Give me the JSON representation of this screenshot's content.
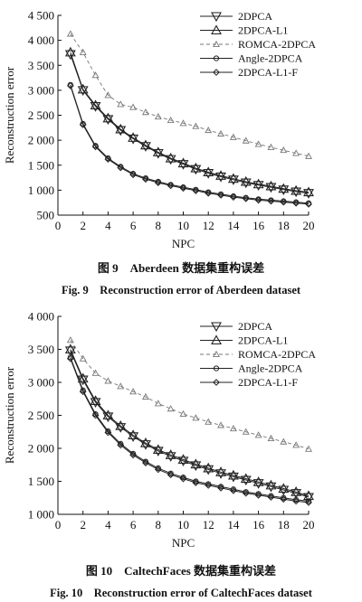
{
  "charts": [
    {
      "fig_cn": "图 9　Aberdeen 数据集重构误差",
      "fig_en": "Fig. 9　Reconstruction error of Aberdeen dataset",
      "chart_data": {
        "type": "line",
        "xlabel": "NPC",
        "ylabel": "Reconstruction error",
        "xlim": [
          0,
          20
        ],
        "ylim": [
          500,
          4500
        ],
        "xticks": [
          0,
          2,
          4,
          6,
          8,
          10,
          12,
          14,
          16,
          18,
          20
        ],
        "xtick_labels": [
          "0",
          "2",
          "4",
          "6",
          "8",
          "10",
          "12",
          "14",
          "16",
          "18",
          "20"
        ],
        "yticks": [
          500,
          1000,
          1500,
          2000,
          2500,
          3000,
          3500,
          4000,
          4500
        ],
        "ytick_labels": [
          "500",
          "1 000",
          "1 500",
          "2 000",
          "2 500",
          "3 000",
          "3 500",
          "4 000",
          "4 500"
        ],
        "legend_position": "top-right",
        "x": [
          1,
          2,
          3,
          4,
          5,
          6,
          7,
          8,
          9,
          10,
          11,
          12,
          13,
          14,
          15,
          16,
          17,
          18,
          19,
          20
        ],
        "series": [
          {
            "name": "2DPCA",
            "marker": "triangle-down",
            "dash": "solid",
            "values": [
              3720,
              3000,
              2680,
              2420,
              2200,
              2030,
              1880,
              1740,
              1620,
              1520,
              1420,
              1340,
              1270,
              1210,
              1150,
              1100,
              1060,
              1010,
              970,
              940
            ]
          },
          {
            "name": "2DPCA-L1",
            "marker": "triangle-up",
            "dash": "solid",
            "values": [
              3760,
              3020,
              2700,
              2440,
              2220,
              2050,
              1900,
              1760,
              1640,
              1540,
              1440,
              1360,
              1290,
              1230,
              1170,
              1120,
              1080,
              1030,
              990,
              960
            ]
          },
          {
            "name": "ROMCA-2DPCA",
            "marker": "triangle-up-small",
            "dash": "dashed",
            "values": [
              4130,
              3760,
              3300,
              2900,
              2720,
              2660,
              2560,
              2470,
              2400,
              2340,
              2280,
              2200,
              2130,
              2060,
              1990,
              1920,
              1860,
              1800,
              1740,
              1680
            ]
          },
          {
            "name": "Angle-2DPCA",
            "marker": "circle",
            "dash": "solid",
            "values": [
              3110,
              2330,
              1890,
              1640,
              1470,
              1330,
              1240,
              1170,
              1110,
              1060,
              1010,
              960,
              920,
              880,
              850,
              820,
              800,
              780,
              760,
              740
            ]
          },
          {
            "name": "2DPCA-L1-F",
            "marker": "diamond",
            "dash": "solid",
            "values": [
              3090,
              2310,
              1870,
              1620,
              1450,
              1310,
              1220,
              1150,
              1090,
              1040,
              990,
              940,
              900,
              860,
              830,
              800,
              780,
              760,
              740,
              720
            ]
          }
        ]
      }
    },
    {
      "fig_cn": "图 10　CaltechFaces 数据集重构误差",
      "fig_en": "Fig. 10　Reconstruction error of CaltechFaces dataset",
      "chart_data": {
        "type": "line",
        "xlabel": "NPC",
        "ylabel": "Reconstruction error",
        "xlim": [
          0,
          20
        ],
        "ylim": [
          1000,
          4000
        ],
        "xticks": [
          0,
          2,
          4,
          6,
          8,
          10,
          12,
          14,
          16,
          18,
          20
        ],
        "xtick_labels": [
          "0",
          "2",
          "4",
          "6",
          "8",
          "10",
          "12",
          "14",
          "16",
          "18",
          "20"
        ],
        "yticks": [
          1000,
          1500,
          2000,
          2500,
          3000,
          3500,
          4000
        ],
        "ytick_labels": [
          "1 000",
          "1 500",
          "2 000",
          "2 500",
          "3 000",
          "3 500",
          "4 000"
        ],
        "legend_position": "top-right",
        "x": [
          1,
          2,
          3,
          4,
          5,
          6,
          7,
          8,
          9,
          10,
          11,
          12,
          13,
          14,
          15,
          16,
          17,
          18,
          19,
          20
        ],
        "series": [
          {
            "name": "2DPCA",
            "marker": "triangle-down",
            "dash": "solid",
            "values": [
              3480,
              3040,
              2700,
              2480,
              2320,
              2180,
              2060,
              1960,
              1880,
              1810,
              1740,
              1680,
              1620,
              1570,
              1520,
              1470,
              1420,
              1370,
              1320,
              1260
            ]
          },
          {
            "name": "2DPCA-L1",
            "marker": "triangle-up",
            "dash": "solid",
            "values": [
              3500,
              3060,
              2720,
              2500,
              2340,
              2200,
              2080,
              1980,
              1900,
              1830,
              1760,
              1700,
              1640,
              1590,
              1540,
              1490,
              1440,
              1390,
              1340,
              1280
            ]
          },
          {
            "name": "ROMCA-2DPCA",
            "marker": "triangle-up-small",
            "dash": "dashed",
            "values": [
              3640,
              3360,
              3140,
              3020,
              2940,
              2860,
              2780,
              2680,
              2600,
              2520,
              2460,
              2400,
              2350,
              2300,
              2250,
              2200,
              2150,
              2100,
              2050,
              1990
            ]
          },
          {
            "name": "Angle-2DPCA",
            "marker": "circle",
            "dash": "solid",
            "values": [
              3380,
              2880,
              2520,
              2260,
              2070,
              1920,
              1800,
              1700,
              1620,
              1560,
              1500,
              1460,
              1420,
              1380,
              1340,
              1310,
              1280,
              1250,
              1220,
              1200
            ]
          },
          {
            "name": "2DPCA-L1-F",
            "marker": "diamond",
            "dash": "solid",
            "values": [
              3360,
              2860,
              2500,
              2240,
              2050,
              1900,
              1780,
              1680,
              1600,
              1540,
              1480,
              1440,
              1400,
              1360,
              1320,
              1290,
              1260,
              1230,
              1200,
              1180
            ]
          }
        ]
      }
    }
  ]
}
